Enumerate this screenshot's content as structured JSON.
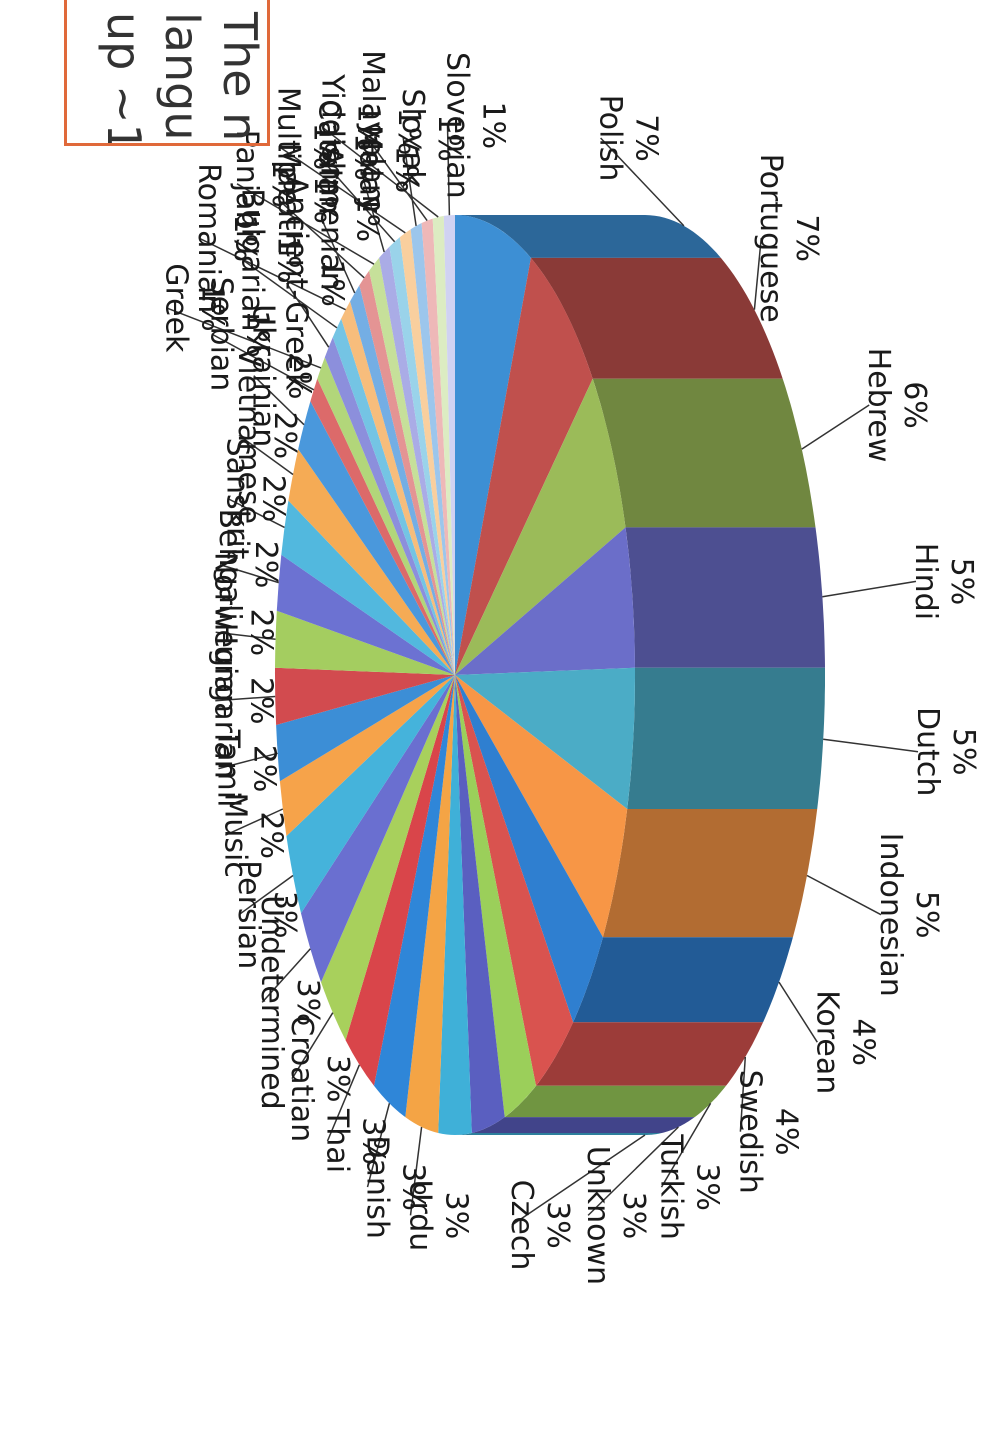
{
  "callout": {
    "lines": [
      "The n",
      "langu",
      "up ~1"
    ]
  },
  "chart_data": {
    "type": "pie",
    "three_d": true,
    "rotation": "rotated 90° clockwise",
    "title": "",
    "slices": [
      {
        "label": "Polish",
        "value": 7,
        "display": "7%",
        "color": "#3d8fd4"
      },
      {
        "label": "Portuguese",
        "value": 7,
        "display": "7%",
        "color": "#c0504d"
      },
      {
        "label": "Hebrew",
        "value": 6,
        "display": "6%",
        "color": "#9bbb59"
      },
      {
        "label": "Hindi",
        "value": 5,
        "display": "5%",
        "color": "#6b6ec9"
      },
      {
        "label": "Dutch",
        "value": 5,
        "display": "5%",
        "color": "#4bacc6"
      },
      {
        "label": "Indonesian",
        "value": 5,
        "display": "5%",
        "color": "#f79646"
      },
      {
        "label": "Korean",
        "value": 4,
        "display": "4%",
        "color": "#2f7fd0"
      },
      {
        "label": "Swedish",
        "value": 4,
        "display": "4%",
        "color": "#d9534f"
      },
      {
        "label": "Turkish",
        "value": 3,
        "display": "3%",
        "color": "#9bcf5a"
      },
      {
        "label": "Unknown",
        "value": 3,
        "display": "3%",
        "color": "#5a5fc0"
      },
      {
        "label": "Czech",
        "value": 3,
        "display": "3%",
        "color": "#3fb0d8"
      },
      {
        "label": "Urdu",
        "value": 3,
        "display": "3%",
        "color": "#f4a445"
      },
      {
        "label": "Danish",
        "value": 3,
        "display": "3%",
        "color": "#2f86d8"
      },
      {
        "label": "Thai",
        "value": 3,
        "display": "3%",
        "color": "#d9454a"
      },
      {
        "label": "Croatian",
        "value": 3,
        "display": "3%",
        "color": "#a8d05c"
      },
      {
        "label": "Undetermined",
        "value": 3,
        "display": "3%",
        "color": "#6a6fd0"
      },
      {
        "label": "Persian",
        "value": 3,
        "display": "3%",
        "color": "#45b3db"
      },
      {
        "label": "Music",
        "value": 2,
        "display": "2%",
        "color": "#f6a34a"
      },
      {
        "label": "Tamil",
        "value": 2,
        "display": "2%",
        "color": "#3c8ed6"
      },
      {
        "label": "Hungarian",
        "value": 2,
        "display": "2%",
        "color": "#d24b4f"
      },
      {
        "label": "Norwegian",
        "value": 2,
        "display": "2%",
        "color": "#a4cd60"
      },
      {
        "label": "Bengali",
        "value": 2,
        "display": "2%",
        "color": "#6c72d2"
      },
      {
        "label": "Sanskrit",
        "value": 2,
        "display": "2%",
        "color": "#52b8de"
      },
      {
        "label": "Vietnamese",
        "value": 2,
        "display": "2%",
        "color": "#f5ab55"
      },
      {
        "label": "Ukrainian",
        "value": 2,
        "display": "2%",
        "color": "#4a98dc"
      },
      {
        "label": "Serbian",
        "value": 1,
        "display": "1%",
        "color": "#dc6a6a"
      },
      {
        "label": "Greek",
        "value": 1,
        "display": "1%",
        "color": "#b2d67a"
      },
      {
        "label": "Ancient-Greek",
        "value": 1,
        "display": "1%",
        "color": "#8c8fdc"
      },
      {
        "label": "Bulgarian",
        "value": 1,
        "display": "1%",
        "color": "#74c4e4"
      },
      {
        "label": "Romanian",
        "value": 1,
        "display": "1%",
        "color": "#f7bd7c"
      },
      {
        "label": "Armenian",
        "value": 1,
        "display": "1%",
        "color": "#74aee4"
      },
      {
        "label": "Marathi",
        "value": 1,
        "display": "1%",
        "color": "#e49494"
      },
      {
        "label": "Panjabi",
        "value": 1,
        "display": "1%",
        "color": "#c6e09a"
      },
      {
        "label": "Malay",
        "value": 1,
        "display": "1%",
        "color": "#aaace6"
      },
      {
        "label": "Catalan",
        "value": 1,
        "display": "1%",
        "color": "#9ad3ea"
      },
      {
        "label": "Multiple",
        "value": 1,
        "display": "1%",
        "color": "#f9cf9e"
      },
      {
        "label": "Slovak",
        "value": 1,
        "display": "1%",
        "color": "#9cc6ec"
      },
      {
        "label": "Malayalam",
        "value": 1,
        "display": "1%",
        "color": "#eeb8b8"
      },
      {
        "label": "Yiddish",
        "value": 1,
        "display": "1%",
        "color": "#dcecc2"
      },
      {
        "label": "Slovenian",
        "value": 1,
        "display": "1%",
        "color": "#d0d2f2"
      }
    ]
  }
}
